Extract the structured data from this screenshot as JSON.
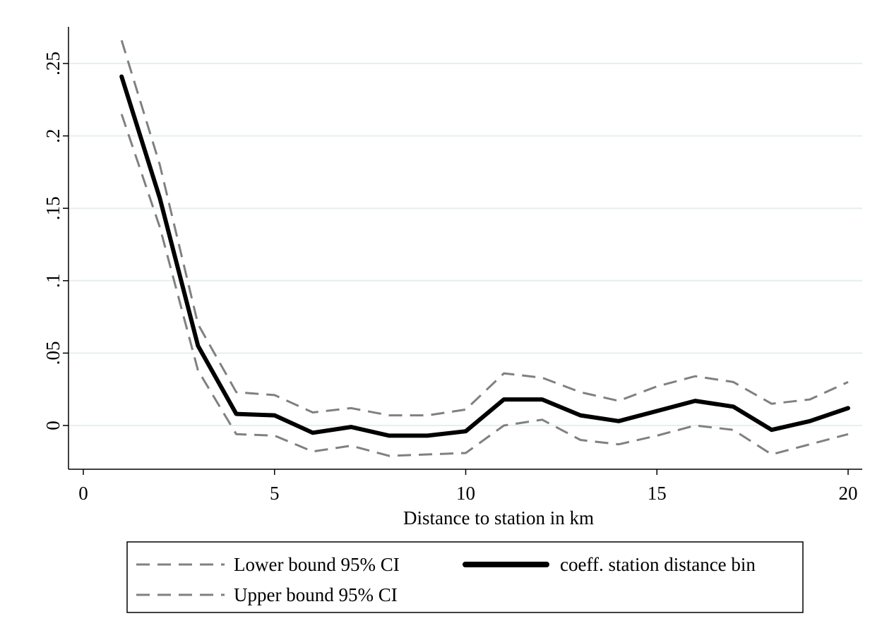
{
  "chart_data": {
    "type": "line",
    "title": "",
    "xlabel": "Distance to station in km",
    "ylabel": "",
    "xlim": [
      0,
      20
    ],
    "ylim": [
      -0.03,
      0.27
    ],
    "x_ticks": [
      {
        "value": 0,
        "label": "0"
      },
      {
        "value": 5,
        "label": "5"
      },
      {
        "value": 10,
        "label": "10"
      },
      {
        "value": 15,
        "label": "15"
      },
      {
        "value": 20,
        "label": "20"
      }
    ],
    "y_ticks": [
      {
        "value": 0,
        "label": "0"
      },
      {
        "value": 0.05,
        "label": ".05"
      },
      {
        "value": 0.1,
        "label": ".1"
      },
      {
        "value": 0.15,
        "label": ".15"
      },
      {
        "value": 0.2,
        "label": ".2"
      },
      {
        "value": 0.25,
        "label": ".25"
      }
    ],
    "grid": {
      "horizontal": true,
      "vertical": false,
      "color": "#e6eef0"
    },
    "x": [
      1,
      2,
      3,
      4,
      5,
      6,
      7,
      8,
      9,
      10,
      11,
      12,
      13,
      14,
      15,
      16,
      17,
      18,
      19,
      20
    ],
    "series": [
      {
        "name": "Lower bound 95% CI",
        "color": "#808080",
        "style": "dashed",
        "values": [
          0.215,
          0.137,
          0.038,
          -0.006,
          -0.007,
          -0.018,
          -0.014,
          -0.021,
          -0.02,
          -0.019,
          0.0,
          0.004,
          -0.01,
          -0.013,
          -0.007,
          0.0,
          -0.003,
          -0.02,
          -0.013,
          -0.006
        ]
      },
      {
        "name": "Upper bound 95% CI",
        "color": "#808080",
        "style": "dashed",
        "values": [
          0.266,
          0.18,
          0.07,
          0.023,
          0.021,
          0.009,
          0.012,
          0.007,
          0.007,
          0.011,
          0.036,
          0.033,
          0.023,
          0.017,
          0.027,
          0.034,
          0.03,
          0.015,
          0.018,
          0.03
        ]
      },
      {
        "name": "coeff. station distance bin",
        "color": "#000000",
        "style": "solid",
        "values": [
          0.241,
          0.157,
          0.055,
          0.008,
          0.007,
          -0.005,
          -0.001,
          -0.007,
          -0.007,
          -0.004,
          0.018,
          0.018,
          0.007,
          0.003,
          0.01,
          0.017,
          0.013,
          -0.003,
          0.003,
          0.012
        ]
      }
    ],
    "legend": {
      "placement": "bottom",
      "entries": [
        {
          "label": "Lower bound 95% CI",
          "series": 0
        },
        {
          "label": "coeff. station distance bin",
          "series": 2
        },
        {
          "label": "Upper bound 95% CI",
          "series": 1
        }
      ]
    }
  }
}
